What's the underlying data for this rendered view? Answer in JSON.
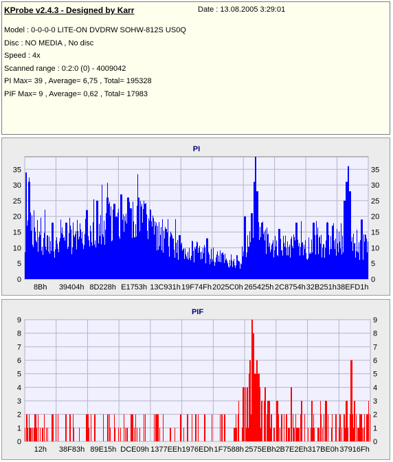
{
  "info": {
    "title": "KProbe v2.4.3 - Designed by Karr",
    "date": "Date : 13.08.2005 3:29:01",
    "lines": [
      "Model : 0-0-0-0 LITE-ON DVDRW SOHW-812S  US0Q",
      "Disc : NO MEDIA , No disc",
      "Speed : 4x",
      "Scanned range : 0:2:0 (0) - 4009042",
      "PI Max= 39 , Average= 6,75 , Total= 195328",
      "PIF Max= 9 , Average= 0,62 , Total= 17983"
    ]
  },
  "chart_data": [
    {
      "type": "bar",
      "title": "PI",
      "color": "#0000ff",
      "title_color": "#000080",
      "ylim": [
        0,
        39
      ],
      "yticks": [
        0,
        5,
        10,
        15,
        20,
        25,
        30,
        35
      ],
      "xticks": [
        "8Bh",
        "39404h",
        "8D228h",
        "E1753h",
        "13C931h",
        "19F74Fh",
        "2025C0h",
        "265425h",
        "2C8754h",
        "32B251h",
        "38EFD1h"
      ],
      "grid": true,
      "profile": [
        [
          0,
          10
        ],
        [
          1,
          32
        ],
        [
          2,
          19
        ],
        [
          4,
          14
        ],
        [
          8,
          12
        ],
        [
          12,
          13
        ],
        [
          16,
          15
        ],
        [
          20,
          17
        ],
        [
          24,
          19
        ],
        [
          28,
          19
        ],
        [
          31,
          20
        ],
        [
          34,
          20
        ],
        [
          36,
          18
        ],
        [
          39,
          14
        ],
        [
          42,
          12
        ],
        [
          45,
          11
        ],
        [
          48,
          10
        ],
        [
          51,
          9
        ],
        [
          54,
          8
        ],
        [
          58,
          7
        ],
        [
          61,
          6
        ],
        [
          63,
          6
        ],
        [
          64,
          8
        ],
        [
          66,
          16
        ],
        [
          67,
          19
        ],
        [
          68,
          20
        ],
        [
          70,
          13
        ],
        [
          72,
          11
        ],
        [
          76,
          11
        ],
        [
          80,
          11
        ],
        [
          84,
          11
        ],
        [
          88,
          11
        ],
        [
          92,
          13
        ],
        [
          94,
          13
        ],
        [
          96,
          11
        ],
        [
          100,
          11
        ]
      ],
      "spikes": [
        [
          0.3,
          34
        ],
        [
          1.2,
          31
        ],
        [
          8,
          18
        ],
        [
          12,
          18
        ],
        [
          18,
          22
        ],
        [
          21,
          25
        ],
        [
          24,
          26
        ],
        [
          26,
          24
        ],
        [
          28,
          27
        ],
        [
          30,
          26
        ],
        [
          33,
          26
        ],
        [
          35,
          24
        ],
        [
          38,
          17
        ],
        [
          41,
          16
        ],
        [
          45,
          14
        ],
        [
          53,
          13
        ],
        [
          64,
          20
        ],
        [
          66,
          21
        ],
        [
          66.8,
          31
        ],
        [
          67.1,
          39
        ],
        [
          67.6,
          28
        ],
        [
          69,
          18
        ],
        [
          74,
          16
        ],
        [
          79,
          18
        ],
        [
          84,
          18
        ],
        [
          88,
          18
        ],
        [
          89.5,
          17
        ],
        [
          93,
          25
        ],
        [
          93.6,
          31
        ],
        [
          94.1,
          36
        ],
        [
          94.6,
          28
        ],
        [
          98,
          19
        ]
      ]
    },
    {
      "type": "bar",
      "title": "PIF",
      "color": "#ff0000",
      "title_color": "#000080",
      "ylim": [
        0,
        9
      ],
      "yticks": [
        0,
        1,
        2,
        3,
        4,
        5,
        6,
        7,
        8,
        9
      ],
      "xticks": [
        "12h",
        "38F83h",
        "89E15h",
        "DCE09h",
        "1377EEh",
        "1976EDh",
        "1F7588h",
        "2575EBh",
        "2B7E2Eh",
        "317BE0h",
        "37916Fh"
      ],
      "grid": true,
      "profile": [
        [
          0,
          0.9
        ],
        [
          10,
          0.8
        ],
        [
          20,
          0.7
        ],
        [
          40,
          0.8
        ],
        [
          50,
          0.7
        ],
        [
          60,
          0.8
        ],
        [
          63,
          1.6
        ],
        [
          64,
          2
        ],
        [
          65,
          2.8
        ],
        [
          66,
          2.9
        ],
        [
          67,
          2.5
        ],
        [
          68,
          2.5
        ],
        [
          70,
          1.3
        ],
        [
          74,
          1
        ],
        [
          80,
          1.1
        ],
        [
          90,
          1.2
        ],
        [
          93,
          1.3
        ],
        [
          100,
          1
        ]
      ],
      "spikes": [
        [
          0.5,
          2
        ],
        [
          3,
          2
        ],
        [
          8,
          2
        ],
        [
          13,
          2
        ],
        [
          18,
          2
        ],
        [
          24,
          2
        ],
        [
          31,
          2
        ],
        [
          38,
          2
        ],
        [
          45,
          2
        ],
        [
          52,
          2
        ],
        [
          57,
          2
        ],
        [
          63.2,
          4
        ],
        [
          64.3,
          4
        ],
        [
          65.1,
          6
        ],
        [
          65.7,
          9
        ],
        [
          66.1,
          8
        ],
        [
          66.6,
          5
        ],
        [
          67.1,
          6
        ],
        [
          67.6,
          5
        ],
        [
          68.5,
          3
        ],
        [
          69.5,
          4
        ],
        [
          70.4,
          3
        ],
        [
          73,
          3
        ],
        [
          77,
          4
        ],
        [
          80,
          3
        ],
        [
          83,
          3
        ],
        [
          87,
          3
        ],
        [
          90,
          2
        ],
        [
          93,
          3
        ],
        [
          94.4,
          6
        ],
        [
          95.3,
          3
        ],
        [
          97,
          2
        ],
        [
          99,
          2
        ]
      ]
    }
  ]
}
